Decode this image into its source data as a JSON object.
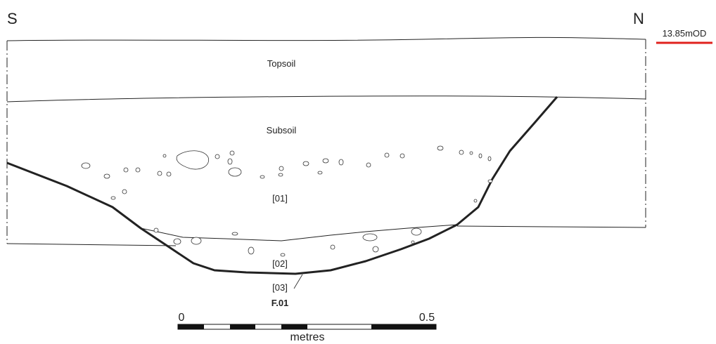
{
  "compass": {
    "south": "S",
    "north": "N"
  },
  "level": "13.85mOD",
  "layers": {
    "topsoil": "Topsoil",
    "subsoil": "Subsoil"
  },
  "contexts": {
    "fill_upper": "[01]",
    "fill_lower": "[02]",
    "cut": "[03]",
    "feature": "F.01"
  },
  "scale": {
    "start": "0",
    "end": "0.5",
    "unit": "metres"
  }
}
